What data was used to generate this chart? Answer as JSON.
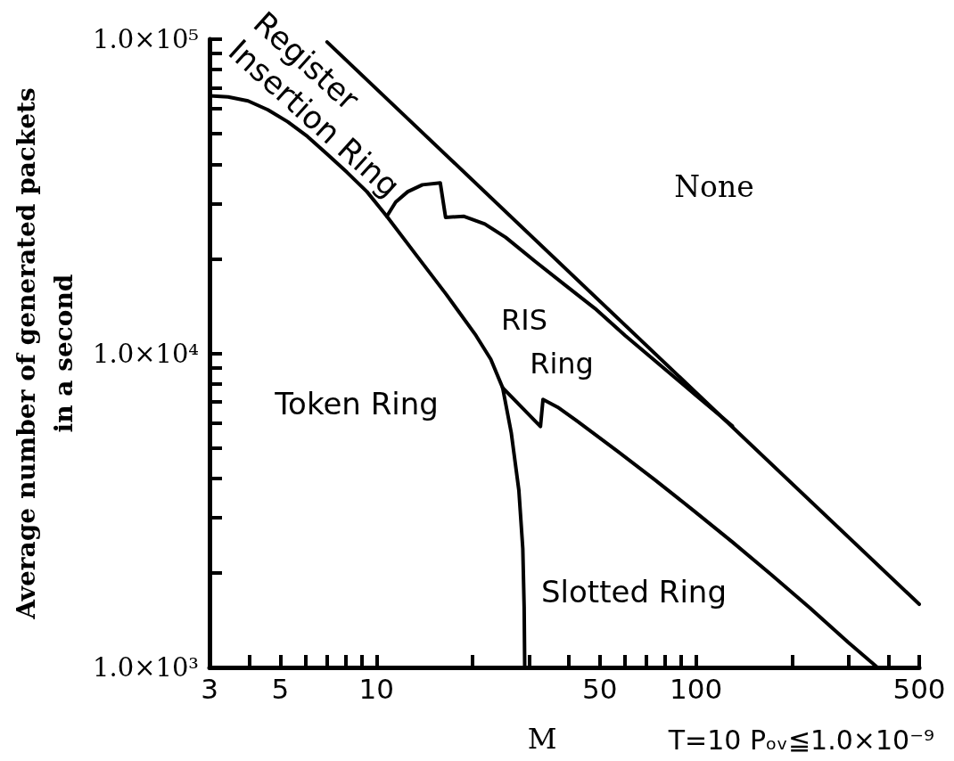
{
  "chart_data": {
    "type": "line",
    "xlabel": "M",
    "ylabel": "Average number of generated packets\nin a second",
    "log": "xy",
    "xlim": [
      3,
      500
    ],
    "ylim": [
      1000,
      100000
    ],
    "xticks": [
      3,
      {
        "value": 4,
        "label": null
      },
      5,
      {
        "value": 6,
        "label": null
      },
      {
        "value": 7,
        "label": null
      },
      {
        "value": 8,
        "label": null
      },
      {
        "value": 9,
        "label": null
      },
      10,
      {
        "value": 20,
        "label": null
      },
      {
        "value": 30,
        "label": null
      },
      {
        "value": 40,
        "label": null
      },
      50,
      {
        "value": 60,
        "label": null
      },
      {
        "value": 70,
        "label": null
      },
      {
        "value": 80,
        "label": null
      },
      {
        "value": 90,
        "label": null
      },
      100,
      {
        "value": 200,
        "label": null
      },
      {
        "value": 300,
        "label": null
      },
      {
        "value": 400,
        "label": null
      },
      500
    ],
    "yticks": [
      {
        "value": 1000,
        "label": "1.0×10³"
      },
      {
        "value": 2000,
        "label": null
      },
      {
        "value": 3000,
        "label": null
      },
      {
        "value": 4000,
        "label": null
      },
      {
        "value": 5000,
        "label": null
      },
      {
        "value": 6000,
        "label": null
      },
      {
        "value": 7000,
        "label": null
      },
      {
        "value": 8000,
        "label": null
      },
      {
        "value": 9000,
        "label": null
      },
      {
        "value": 10000,
        "label": "1.0×10⁴"
      },
      {
        "value": 20000,
        "label": null
      },
      {
        "value": 30000,
        "label": null
      },
      {
        "value": 40000,
        "label": null
      },
      {
        "value": 50000,
        "label": null
      },
      {
        "value": 60000,
        "label": null
      },
      {
        "value": 70000,
        "label": null
      },
      {
        "value": 80000,
        "label": null
      },
      {
        "value": 90000,
        "label": null
      },
      {
        "value": 100000,
        "label": "1.0×10⁵"
      }
    ],
    "marker": "none",
    "line_style": "solid",
    "series": [
      {
        "color": "#000000",
        "x": [
          7,
          100,
          500
        ],
        "values": [
          98000,
          7500,
          1590
        ]
      },
      {
        "color": "#000000",
        "x": [
          3,
          3.43,
          3.96,
          4.57,
          5.27,
          6.08,
          7.02,
          8.08,
          9.33,
          10.77,
          13.34,
          16.53,
          20.47,
          22.79,
          24.82,
          26.4,
          27.9,
          28.7,
          28.98,
          29.1
        ],
        "values": [
          66000,
          65500,
          63600,
          59600,
          54600,
          49000,
          43000,
          37700,
          32700,
          27300,
          20500,
          15400,
          11400,
          9570,
          7770,
          5600,
          3660,
          2390,
          1560,
          1000
        ]
      },
      {
        "color": "#000000",
        "x": [
          10.77,
          11.48,
          12.52,
          13.92,
          15.83,
          16.45,
          18.79,
          21.83,
          25.37,
          31.41,
          38.92,
          48.25,
          60,
          100,
          130
        ],
        "values": [
          27300,
          30300,
          32700,
          34400,
          34900,
          27100,
          27300,
          25800,
          23400,
          19600,
          16500,
          13900,
          11400,
          7350,
          5870
        ]
      },
      {
        "color": "#000000",
        "x": [
          24.82,
          32.6,
          33.2,
          36.9,
          42.5,
          56.2,
          74.3,
          98.2,
          129.9,
          171.6,
          227,
          300,
          370
        ],
        "values": [
          7770,
          5850,
          7130,
          6740,
          6080,
          4920,
          3960,
          3160,
          2510,
          1980,
          1550,
          1200,
          1000
        ]
      }
    ],
    "annotations": [
      "Register\nInsertion Ring",
      "None",
      "RIS\nRing",
      "Token Ring",
      "Slotted Ring",
      "T=10 Pₒᵥ≦1.0×10⁻⁹"
    ]
  }
}
